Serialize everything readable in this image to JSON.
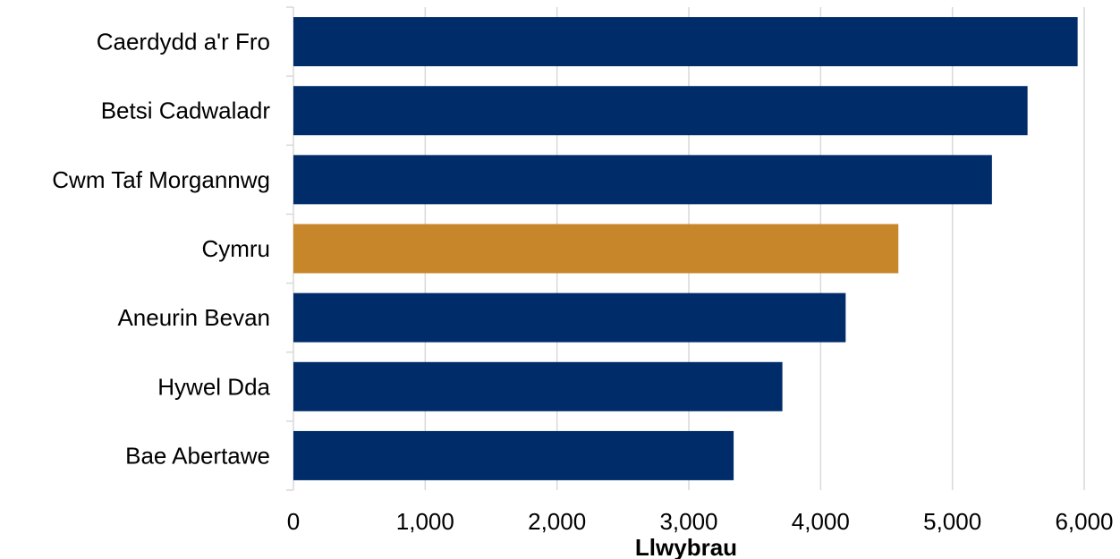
{
  "chart_data": {
    "type": "bar",
    "orientation": "horizontal",
    "categories": [
      "Caerdydd a'r Fro",
      "Betsi Cadwaladr",
      "Cwm Taf Morgannwg",
      "Cymru",
      "Aneurin Bevan",
      "Hywel Dda",
      "Bae Abertawe"
    ],
    "values": [
      5950,
      5570,
      5300,
      4590,
      4190,
      3710,
      3340
    ],
    "colors": [
      "#002D6A",
      "#002D6A",
      "#002D6A",
      "#C8862B",
      "#002D6A",
      "#002D6A",
      "#002D6A"
    ],
    "xlabel": "Llwybrau",
    "xlim": [
      0,
      6000
    ],
    "xticks": [
      0,
      1000,
      2000,
      3000,
      4000,
      5000,
      6000
    ],
    "xtick_labels": [
      "0",
      "1,000",
      "2,000",
      "3,000",
      "4,000",
      "5,000",
      "6,000"
    ],
    "grid": "vertical"
  }
}
